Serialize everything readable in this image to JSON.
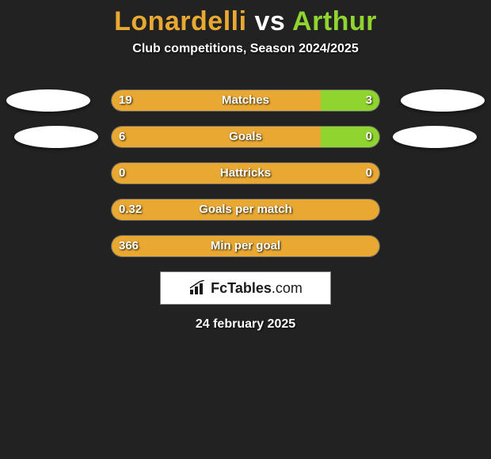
{
  "title": {
    "player1": "Lonardelli",
    "vs": "vs",
    "player2": "Arthur",
    "color1": "#e8a832",
    "color_vs": "#ffffff",
    "color2": "#8fd42f",
    "fontsize": 34
  },
  "subtitle": "Club competitions, Season 2024/2025",
  "colors": {
    "bg": "#222222",
    "left_bar": "#e8a832",
    "right_bar": "#8fd42f",
    "track_empty": "#2a2a2a",
    "track_border": "#666666",
    "text": "#ffffff",
    "oval": "#ffffff"
  },
  "bar": {
    "track_width": 340,
    "track_height": 28,
    "radius": 14
  },
  "stats": [
    {
      "label": "Matches",
      "left_val": "19",
      "right_val": "3",
      "left_pct": 78,
      "right_pct": 22,
      "show_left_oval": true,
      "show_right_oval": true,
      "oval_left_offset": 0,
      "oval_right_offset": 0
    },
    {
      "label": "Goals",
      "left_val": "6",
      "right_val": "0",
      "left_pct": 78,
      "right_pct": 22,
      "show_left_oval": true,
      "show_right_oval": true,
      "oval_left_offset": 10,
      "oval_right_offset": 10
    },
    {
      "label": "Hattricks",
      "left_val": "0",
      "right_val": "0",
      "left_pct": 100,
      "right_pct": 0,
      "show_left_oval": false,
      "show_right_oval": false
    },
    {
      "label": "Goals per match",
      "left_val": "0.32",
      "right_val": "",
      "left_pct": 100,
      "right_pct": 0,
      "show_left_oval": false,
      "show_right_oval": false
    },
    {
      "label": "Min per goal",
      "left_val": "366",
      "right_val": "",
      "left_pct": 100,
      "right_pct": 0,
      "show_left_oval": false,
      "show_right_oval": false
    }
  ],
  "logo": {
    "brand_prefix": "Fc",
    "brand_main": "Tables",
    "brand_suffix": ".com"
  },
  "date": "24 february 2025"
}
